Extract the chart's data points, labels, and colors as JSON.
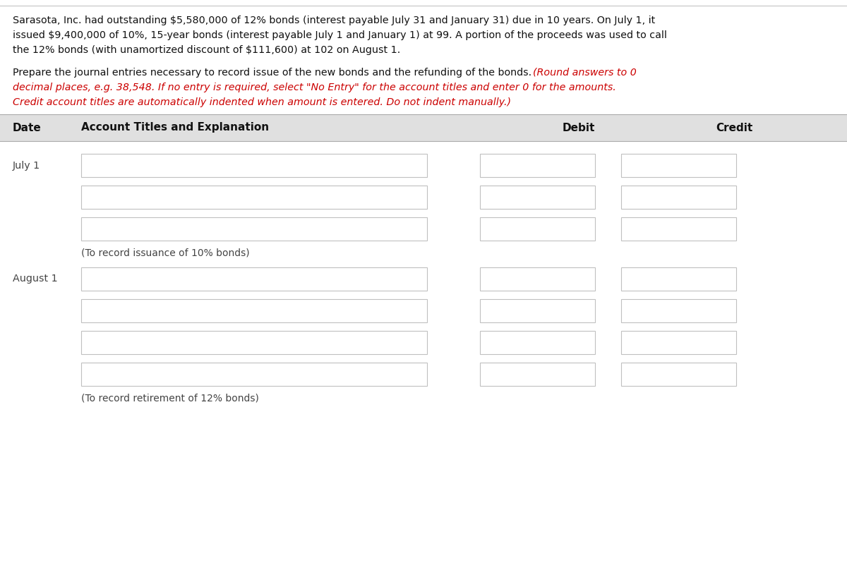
{
  "background_color": "#ffffff",
  "problem_text_line1": "Sarasota, Inc. had outstanding $5,580,000 of 12% bonds (interest payable July 31 and January 31) due in 10 years. On July 1, it",
  "problem_text_line2": "issued $9,400,000 of 10%, 15-year bonds (interest payable July 1 and January 1) at 99. A portion of the proceeds was used to call",
  "problem_text_line3": "the 12% bonds (with unamortized discount of $111,600) at 102 on August 1.",
  "instruction_plain": "Prepare the journal entries necessary to record issue of the new bonds and the refunding of the bonds.",
  "instruction_italic_line1": "(Round answers to 0",
  "instruction_italic_line2": "decimal places, e.g. 38,548. If no entry is required, select \"No Entry\" for the account titles and enter 0 for the amounts.",
  "instruction_italic_line3": "Credit account titles are automatically indented when amount is entered. Do not indent manually.)",
  "header_date": "Date",
  "header_account": "Account Titles and Explanation",
  "header_debit": "Debit",
  "header_credit": "Credit",
  "header_bg": "#e0e0e0",
  "header_text_color": "#111111",
  "date_july1": "July 1",
  "date_august1": "August 1",
  "note_july1": "(To record issuance of 10% bonds)",
  "note_august1": "(To record retirement of 12% bonds)",
  "box_border_color": "#c0c0c0",
  "box_fill_color": "#ffffff",
  "text_color": "#444444",
  "italic_color": "#cc0000",
  "normal_text_color": "#111111",
  "top_border_color": "#cccccc"
}
